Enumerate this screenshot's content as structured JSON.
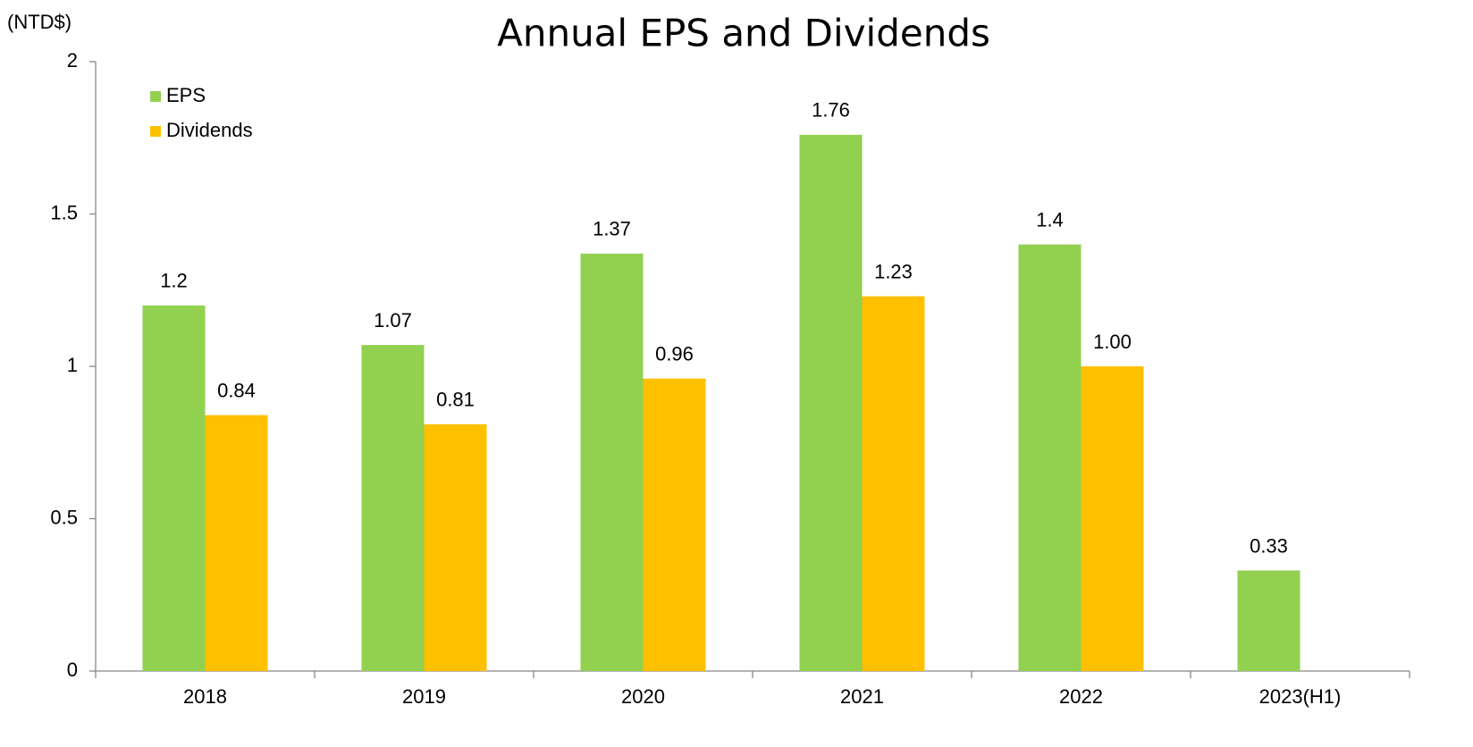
{
  "chart_data": {
    "type": "bar",
    "title": "Annual EPS and Dividends",
    "y_label": "(NTD$)",
    "categories": [
      "2018",
      "2019",
      "2020",
      "2021",
      "2022",
      "2023(H1)"
    ],
    "series": [
      {
        "name": "EPS",
        "color": "#92d050",
        "values": [
          1.2,
          1.07,
          1.37,
          1.76,
          1.4,
          0.33
        ]
      },
      {
        "name": "Dividends",
        "color": "#ffc000",
        "values": [
          0.84,
          0.81,
          0.96,
          1.23,
          1,
          null
        ],
        "value_labels": [
          "0.84",
          "0.81",
          "0.96",
          "1.23",
          "1.00",
          null
        ]
      }
    ],
    "ylim": [
      0,
      2
    ],
    "yticks": [
      0,
      0.5,
      1,
      1.5,
      2
    ],
    "grid": false,
    "legend": "upper left"
  }
}
